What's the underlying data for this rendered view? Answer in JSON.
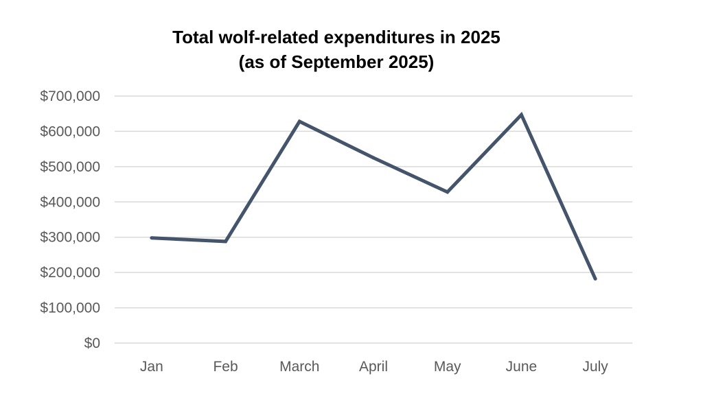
{
  "chart_data": {
    "type": "line",
    "title": "Total wolf-related expenditures in 2025",
    "subtitle": "(as of September 2025)",
    "categories": [
      "Jan",
      "Feb",
      "March",
      "April",
      "May",
      "June",
      "July"
    ],
    "values": [
      298000,
      288000,
      628000,
      525000,
      428000,
      647000,
      182000
    ],
    "yticks": [
      "$0",
      "$100,000",
      "$200,000",
      "$300,000",
      "$400,000",
      "$500,000",
      "$600,000",
      "$700,000"
    ],
    "ylim": [
      0,
      700000
    ],
    "ytick_step": 100000,
    "grid": true,
    "legend": "none",
    "series_color": "#44546a"
  }
}
